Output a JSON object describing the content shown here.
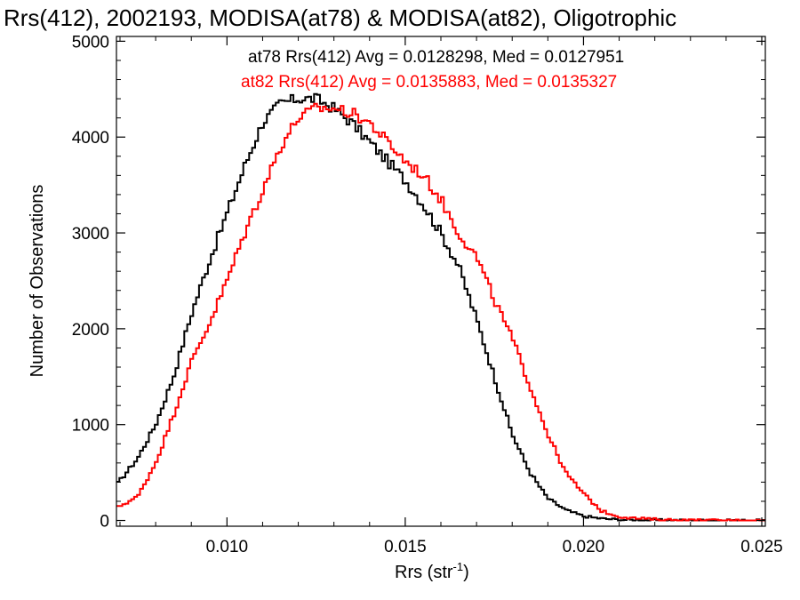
{
  "chart_data": {
    "type": "line",
    "title": "Rrs(412), 2002193, MODISA(at78) & MODISA(at82), Oligotrophic",
    "xlabel": "Rrs (str",
    "xlabel_sup": "-1",
    "xlabel_close": ")",
    "ylabel": "Number of Observations",
    "xlim": [
      0.0069,
      0.0251
    ],
    "ylim": [
      -60,
      5050
    ],
    "xticks": [
      0.01,
      0.015,
      0.02,
      0.025
    ],
    "xtick_labels": [
      "0.010",
      "0.015",
      "0.020",
      "0.025"
    ],
    "yticks": [
      0,
      1000,
      2000,
      3000,
      4000,
      5000
    ],
    "ytick_labels": [
      "0",
      "1000",
      "2000",
      "3000",
      "4000",
      "5000"
    ],
    "grid": false,
    "legend_placement": "top-right",
    "annotations": [
      {
        "text": "at78 Rrs(412) Avg = 0.0128298, Med = 0.0127951",
        "color": "#000000"
      },
      {
        "text": "at82 Rrs(412) Avg = 0.0135883, Med = 0.0135327",
        "color": "#ff0000"
      }
    ],
    "series": [
      {
        "color": "#000000",
        "x": [
          0.0069,
          0.0075,
          0.008,
          0.0085,
          0.009,
          0.0095,
          0.01,
          0.0105,
          0.011,
          0.0115,
          0.012,
          0.0125,
          0.013,
          0.0135,
          0.014,
          0.0145,
          0.015,
          0.0155,
          0.016,
          0.0165,
          0.017,
          0.0175,
          0.018,
          0.0185,
          0.019,
          0.0195,
          0.02,
          0.0205,
          0.021,
          0.0215,
          0.022,
          0.0225,
          0.023,
          0.024,
          0.0251
        ],
        "y": [
          370,
          650,
          1000,
          1500,
          2150,
          2700,
          3200,
          3700,
          4150,
          4350,
          4400,
          4400,
          4300,
          4150,
          3950,
          3750,
          3550,
          3300,
          3000,
          2650,
          2100,
          1500,
          900,
          500,
          230,
          110,
          45,
          20,
          8,
          5,
          3,
          2,
          1,
          0,
          0
        ]
      },
      {
        "color": "#ff0000",
        "x": [
          0.0069,
          0.0075,
          0.008,
          0.0085,
          0.009,
          0.0095,
          0.01,
          0.0105,
          0.011,
          0.0115,
          0.012,
          0.0125,
          0.013,
          0.0135,
          0.014,
          0.0145,
          0.015,
          0.0155,
          0.016,
          0.0165,
          0.017,
          0.0175,
          0.018,
          0.0185,
          0.019,
          0.0195,
          0.02,
          0.0205,
          0.021,
          0.0215,
          0.022,
          0.0225,
          0.023,
          0.024,
          0.0251
        ],
        "y": [
          130,
          250,
          600,
          1100,
          1650,
          2050,
          2500,
          3000,
          3450,
          3900,
          4200,
          4300,
          4300,
          4250,
          4150,
          3950,
          3750,
          3600,
          3350,
          3000,
          2750,
          2300,
          1900,
          1400,
          900,
          500,
          280,
          100,
          40,
          22,
          12,
          6,
          3,
          1,
          0
        ]
      }
    ]
  }
}
